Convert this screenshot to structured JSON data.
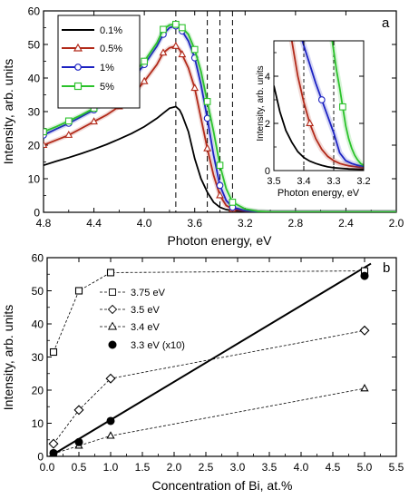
{
  "chart_data": [
    {
      "id": "a",
      "panel_label": "a",
      "type": "line",
      "xlabel": "Photon energy, eV",
      "ylabel": "Intensity, arb. units",
      "xlim": [
        4.8,
        2.0
      ],
      "ylim": [
        0,
        60
      ],
      "x_reversed": true,
      "xticks": [
        "4.8",
        "4.4",
        "4.0",
        "3.6",
        "3.2",
        "2.8",
        "2.4",
        "2.0"
      ],
      "yticks": [
        "0",
        "10",
        "20",
        "30",
        "40",
        "50",
        "60"
      ],
      "legend_position": "top-left",
      "dashed_verticals": [
        3.75,
        3.5,
        3.4,
        3.3
      ],
      "series": [
        {
          "name": "0.1%",
          "color": "#000000",
          "marker": "none",
          "x": [
            4.8,
            4.7,
            4.6,
            4.5,
            4.4,
            4.3,
            4.2,
            4.1,
            4.0,
            3.9,
            3.85,
            3.8,
            3.75,
            3.72,
            3.7,
            3.65,
            3.6,
            3.55,
            3.5,
            3.45,
            3.4,
            3.35,
            3.3,
            3.2,
            3.1,
            3.0,
            2.8,
            2.4,
            2.0
          ],
          "y": [
            14,
            15.2,
            16.3,
            17.5,
            18.8,
            20.2,
            21.8,
            23.5,
            25.5,
            28,
            29.5,
            31,
            31.5,
            30.5,
            29,
            24,
            16,
            10,
            6,
            3,
            1.5,
            0.8,
            0.5,
            0.3,
            0.2,
            0.1,
            0.1,
            0.1,
            0.1
          ]
        },
        {
          "name": "0.5%",
          "color": "#b22a1a",
          "marker": "triangle",
          "x": [
            4.8,
            4.7,
            4.6,
            4.5,
            4.4,
            4.3,
            4.2,
            4.1,
            4.0,
            3.9,
            3.85,
            3.8,
            3.75,
            3.72,
            3.7,
            3.65,
            3.6,
            3.55,
            3.5,
            3.45,
            3.4,
            3.35,
            3.3,
            3.2,
            3.1,
            3.0,
            2.8,
            2.4,
            2.0
          ],
          "y": [
            20,
            21.5,
            23,
            25,
            27,
            29,
            31.5,
            34.5,
            39,
            44,
            47.5,
            49,
            49.5,
            48.5,
            47,
            43,
            37,
            28,
            19,
            11,
            5,
            2,
            1,
            0.4,
            0.2,
            0.1,
            0.1,
            0.1,
            0.1
          ]
        },
        {
          "name": "1%",
          "color": "#1c22c2",
          "marker": "circle",
          "x": [
            4.8,
            4.7,
            4.6,
            4.5,
            4.4,
            4.3,
            4.2,
            4.1,
            4.0,
            3.9,
            3.85,
            3.8,
            3.75,
            3.72,
            3.7,
            3.65,
            3.6,
            3.55,
            3.5,
            3.45,
            3.4,
            3.35,
            3.3,
            3.2,
            3.1,
            3.0,
            2.8,
            2.4,
            2.0
          ],
          "y": [
            23,
            24.8,
            26.5,
            28.5,
            30.5,
            33,
            35.5,
            39.5,
            44,
            49.5,
            53,
            55,
            55.5,
            55,
            54,
            51,
            46,
            38,
            28,
            17,
            8,
            3.5,
            1.5,
            0.5,
            0.2,
            0.1,
            0.1,
            0.1,
            0.1
          ]
        },
        {
          "name": "5%",
          "color": "#2bc22b",
          "marker": "square",
          "x": [
            4.8,
            4.7,
            4.6,
            4.5,
            4.4,
            4.3,
            4.2,
            4.1,
            4.0,
            3.9,
            3.85,
            3.8,
            3.75,
            3.72,
            3.7,
            3.65,
            3.6,
            3.55,
            3.5,
            3.45,
            3.4,
            3.35,
            3.3,
            3.2,
            3.1,
            3.0,
            2.8,
            2.4,
            2.0
          ],
          "y": [
            24,
            25.5,
            27.2,
            29,
            31,
            33.5,
            36.5,
            40.5,
            45,
            50.5,
            54.5,
            55.8,
            56,
            55.5,
            55,
            53,
            48.5,
            42,
            33,
            24,
            14,
            7,
            3,
            1,
            0.3,
            0.1,
            0.1,
            0.1,
            0.1
          ]
        }
      ]
    },
    {
      "id": "a-inset",
      "type": "line",
      "xlabel": "Photon energy, eV",
      "ylabel": "Intensity, arb. units",
      "xlim": [
        3.5,
        3.2
      ],
      "ylim": [
        0,
        5.5
      ],
      "x_reversed": true,
      "xticks": [
        "3.5",
        "3.4",
        "3.3",
        "3.2"
      ],
      "yticks": [
        "0",
        "2",
        "4"
      ],
      "dashed_verticals": [
        3.4,
        3.3
      ],
      "series": [
        {
          "name": "0.1%",
          "color": "#000000",
          "marker": "none",
          "x": [
            3.5,
            3.48,
            3.46,
            3.44,
            3.42,
            3.4,
            3.38,
            3.36,
            3.34,
            3.32,
            3.3,
            3.25,
            3.2
          ],
          "y": [
            3.6,
            2.5,
            1.7,
            1.2,
            0.8,
            0.55,
            0.4,
            0.3,
            0.22,
            0.16,
            0.12,
            0.07,
            0.05
          ]
        },
        {
          "name": "0.5%",
          "color": "#b22a1a",
          "marker": "triangle",
          "x": [
            3.44,
            3.42,
            3.4,
            3.38,
            3.36,
            3.34,
            3.32,
            3.3,
            3.28,
            3.25,
            3.2
          ],
          "y": [
            5.5,
            4.0,
            2.9,
            2.0,
            1.35,
            0.9,
            0.6,
            0.42,
            0.3,
            0.2,
            0.12
          ]
        },
        {
          "name": "1%",
          "color": "#1c22c2",
          "marker": "circle",
          "x": [
            3.405,
            3.38,
            3.36,
            3.34,
            3.32,
            3.3,
            3.28,
            3.26,
            3.24,
            3.22,
            3.2
          ],
          "y": [
            5.5,
            4.5,
            3.7,
            3.0,
            2.3,
            1.6,
            0.75,
            0.42,
            0.3,
            0.22,
            0.18
          ]
        },
        {
          "name": "5%",
          "color": "#2bc22b",
          "marker": "square",
          "x": [
            3.305,
            3.29,
            3.28,
            3.27,
            3.26,
            3.25,
            3.24,
            3.23,
            3.22,
            3.21,
            3.2
          ],
          "y": [
            5.5,
            4.2,
            3.5,
            2.7,
            1.9,
            1.35,
            0.95,
            0.65,
            0.45,
            0.3,
            0.22
          ]
        }
      ]
    },
    {
      "id": "b",
      "panel_label": "b",
      "type": "scatter",
      "xlabel": "Concentration of Bi, at.%",
      "ylabel": "Intensity, arb. units",
      "xlim": [
        0.0,
        5.5
      ],
      "ylim": [
        0,
        60
      ],
      "xticks": [
        "0.0",
        "0.5",
        "1.0",
        "1.5",
        "2.0",
        "2.5",
        "3.0",
        "3.5",
        "4.0",
        "4.5",
        "5.0",
        "5.5"
      ],
      "yticks": [
        "0",
        "10",
        "20",
        "30",
        "40",
        "50",
        "60"
      ],
      "legend_position": "upper-left",
      "series": [
        {
          "name": "3.75 eV",
          "marker": "open-square",
          "line": "dashed",
          "x": [
            0.1,
            0.5,
            1.0,
            5.0
          ],
          "y": [
            31.5,
            50,
            55.5,
            56
          ]
        },
        {
          "name": "3.5 eV",
          "marker": "open-diamond",
          "line": "dashed",
          "x": [
            0.1,
            0.5,
            1.0,
            5.0
          ],
          "y": [
            3.8,
            14,
            23.5,
            38
          ]
        },
        {
          "name": "3.4 eV",
          "marker": "open-triangle",
          "line": "dashed",
          "x": [
            0.1,
            0.5,
            1.0,
            5.0
          ],
          "y": [
            0.8,
            3.2,
            6.2,
            20.5
          ]
        },
        {
          "name": "3.3 eV (x10)",
          "marker": "filled-circle",
          "line": "none",
          "x": [
            0.1,
            0.5,
            1.0,
            5.0
          ],
          "y": [
            1,
            4.3,
            10.7,
            54.5
          ]
        }
      ],
      "fit_line": {
        "x": [
          0.0,
          5.1
        ],
        "y": [
          -0.5,
          58.2
        ]
      }
    }
  ]
}
